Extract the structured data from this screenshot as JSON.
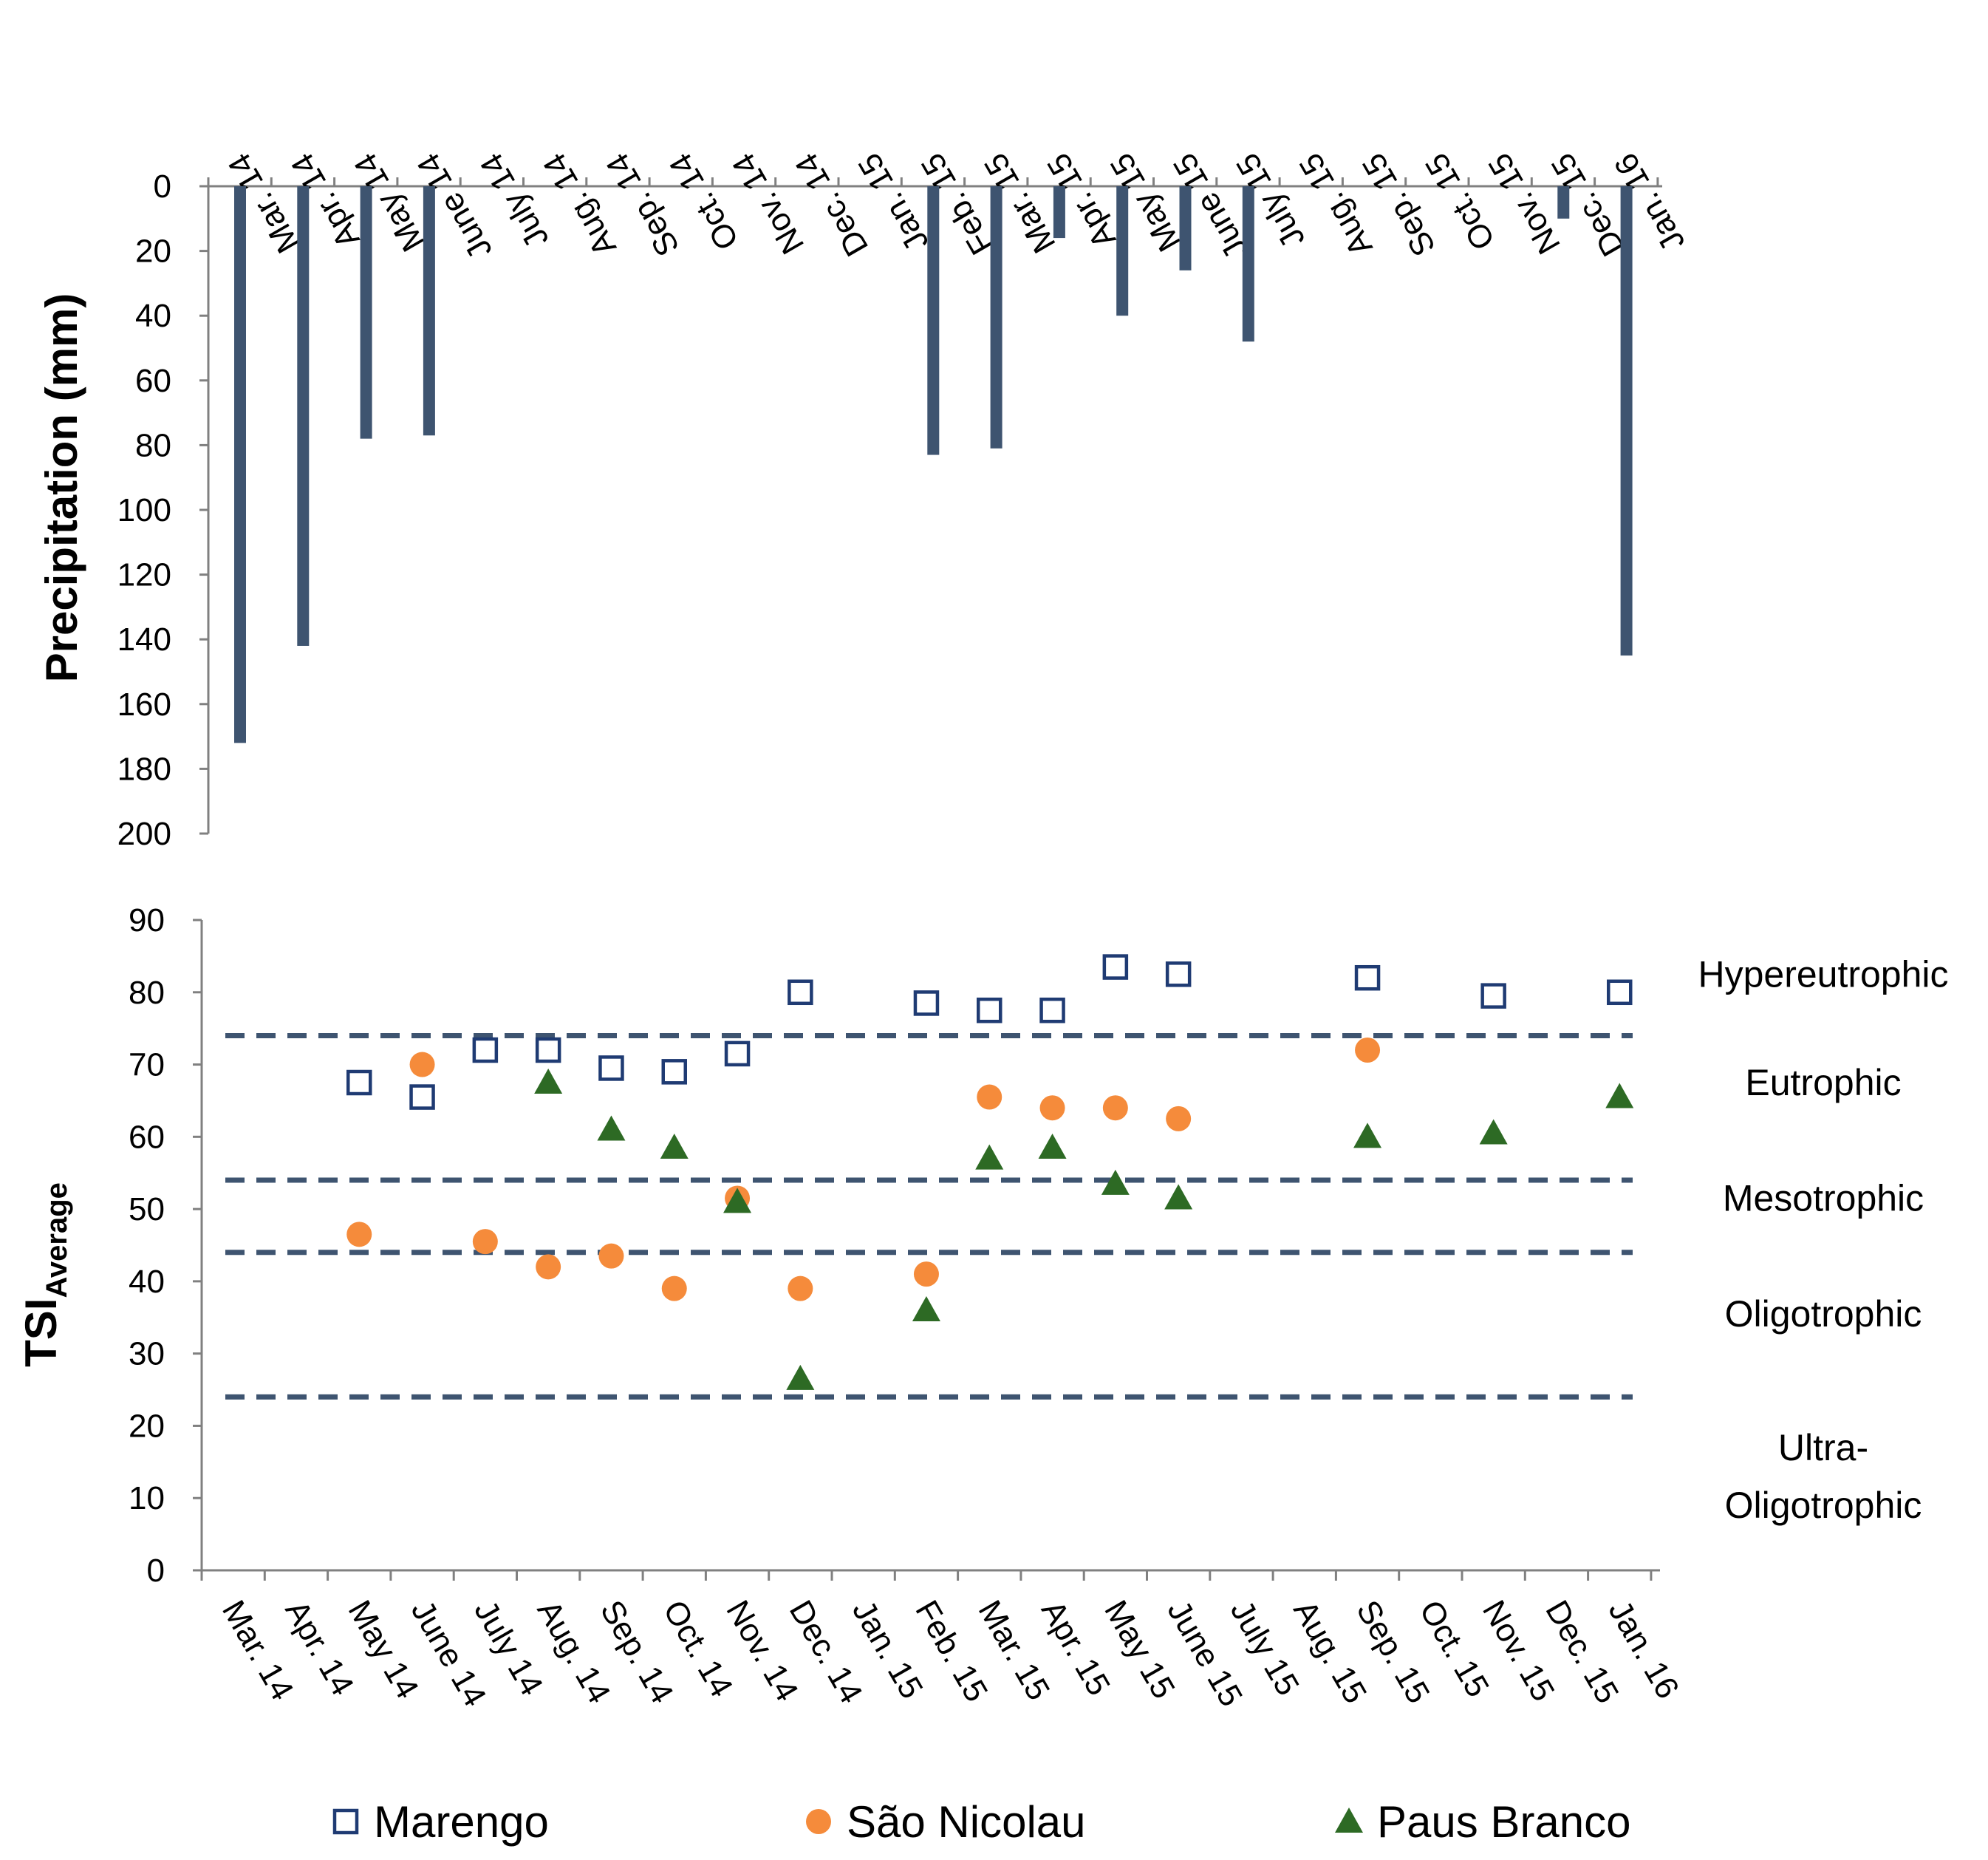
{
  "chart_data": [
    {
      "type": "bar",
      "ylabel": "Precipitation (mm)",
      "ylim": [
        0,
        200
      ],
      "y_inverted": true,
      "y_ticks": [
        "0",
        "20",
        "40",
        "60",
        "80",
        "100",
        "120",
        "140",
        "160",
        "180",
        "200"
      ],
      "categories": [
        "Mar. 14",
        "Apr. 14",
        "May 14",
        "June 14",
        "July 14",
        "Aug. 14",
        "Sep. 14",
        "Oct. 14",
        "Nov. 14",
        "Dec. 14",
        "Jan. 15",
        "Feb. 15",
        "Mar. 15",
        "Apr. 15",
        "May 15",
        "June 15",
        "July 15",
        "Aug. 15",
        "Sep. 15",
        "Oct. 15",
        "Nov. 15",
        "Dec. 15",
        "Jan. 16"
      ],
      "values": [
        172,
        142,
        78,
        77,
        0,
        0,
        0,
        0,
        0,
        0,
        0,
        83,
        81,
        16,
        40,
        26,
        48,
        0,
        0,
        0,
        0,
        10,
        145
      ],
      "tick_labels_position": "top",
      "grid": false,
      "colors": {
        "bar": "#3e5470"
      }
    },
    {
      "type": "scatter",
      "ylabel": "TSI",
      "ylabel_subscript": "Average",
      "ylim": [
        0,
        90
      ],
      "y_ticks": [
        "0",
        "10",
        "20",
        "30",
        "40",
        "50",
        "60",
        "70",
        "80",
        "90"
      ],
      "categories": [
        "Mar. 14",
        "Apr. 14",
        "May 14",
        "June 14",
        "July 14",
        "Aug. 14",
        "Sep. 14",
        "Oct. 14",
        "Nov. 14",
        "Dec. 14",
        "Jan. 15",
        "Feb. 15",
        "Mar. 15",
        "Apr. 15",
        "May 15",
        "June 15",
        "July 15",
        "Aug. 15",
        "Sep. 15",
        "Oct. 15",
        "Nov. 15",
        "Dec. 15",
        "Jan. 16"
      ],
      "series": [
        {
          "name": "Marengo",
          "marker": "hollow-square",
          "color": "#1f3b73",
          "points": [
            [
              2.5,
              67.5
            ],
            [
              3.5,
              65.5
            ],
            [
              4.5,
              72
            ],
            [
              5.5,
              72
            ],
            [
              6.5,
              69.5
            ],
            [
              7.5,
              69
            ],
            [
              8.5,
              71.5
            ],
            [
              9.5,
              80
            ],
            [
              11.5,
              78.5
            ],
            [
              12.5,
              77.5
            ],
            [
              13.5,
              77.5
            ],
            [
              14.5,
              83.5
            ],
            [
              15.5,
              82.5
            ],
            [
              18.5,
              82
            ],
            [
              20.5,
              79.5
            ],
            [
              22.5,
              80
            ]
          ]
        },
        {
          "name": "São Nicolau",
          "marker": "circle",
          "color": "#f58b3b",
          "points": [
            [
              2.5,
              46.5
            ],
            [
              3.5,
              70
            ],
            [
              4.5,
              45.5
            ],
            [
              5.5,
              42
            ],
            [
              6.5,
              43.5
            ],
            [
              7.5,
              39
            ],
            [
              8.5,
              51.5
            ],
            [
              9.5,
              39
            ],
            [
              11.5,
              41
            ],
            [
              12.5,
              65.5
            ],
            [
              13.5,
              64
            ],
            [
              14.5,
              64
            ],
            [
              15.5,
              62.5
            ],
            [
              18.5,
              72
            ]
          ]
        },
        {
          "name": "Paus Branco",
          "marker": "triangle",
          "color": "#2d6a24",
          "points": [
            [
              5.5,
              67.5
            ],
            [
              6.5,
              61
            ],
            [
              7.5,
              58.5
            ],
            [
              8.5,
              51
            ],
            [
              9.5,
              26.5
            ],
            [
              11.5,
              36
            ],
            [
              12.5,
              57
            ],
            [
              13.5,
              58.5
            ],
            [
              14.5,
              53.5
            ],
            [
              15.5,
              51.5
            ],
            [
              18.5,
              60
            ],
            [
              20.5,
              60.5
            ],
            [
              22.5,
              65.5
            ]
          ]
        }
      ],
      "thresholds": [
        {
          "value": 74,
          "color": "#3e5470"
        },
        {
          "value": 54,
          "color": "#3e5470"
        },
        {
          "value": 44,
          "color": "#3e5470"
        },
        {
          "value": 24,
          "color": "#3e5470"
        }
      ],
      "zone_labels": [
        {
          "lines": [
            "Hypereutrophic"
          ],
          "center": 82.5
        },
        {
          "lines": [
            "Eutrophic"
          ],
          "center": 67.5
        },
        {
          "lines": [
            "Mesotrophic"
          ],
          "center": 51.5
        },
        {
          "lines": [
            "Oligotrophic"
          ],
          "center": 35.5
        },
        {
          "lines": [
            "Ultra-",
            "Oligotrophic"
          ],
          "center": 13
        }
      ],
      "tick_labels_position": "bottom",
      "legend_position": "bottom",
      "grid": false
    }
  ]
}
